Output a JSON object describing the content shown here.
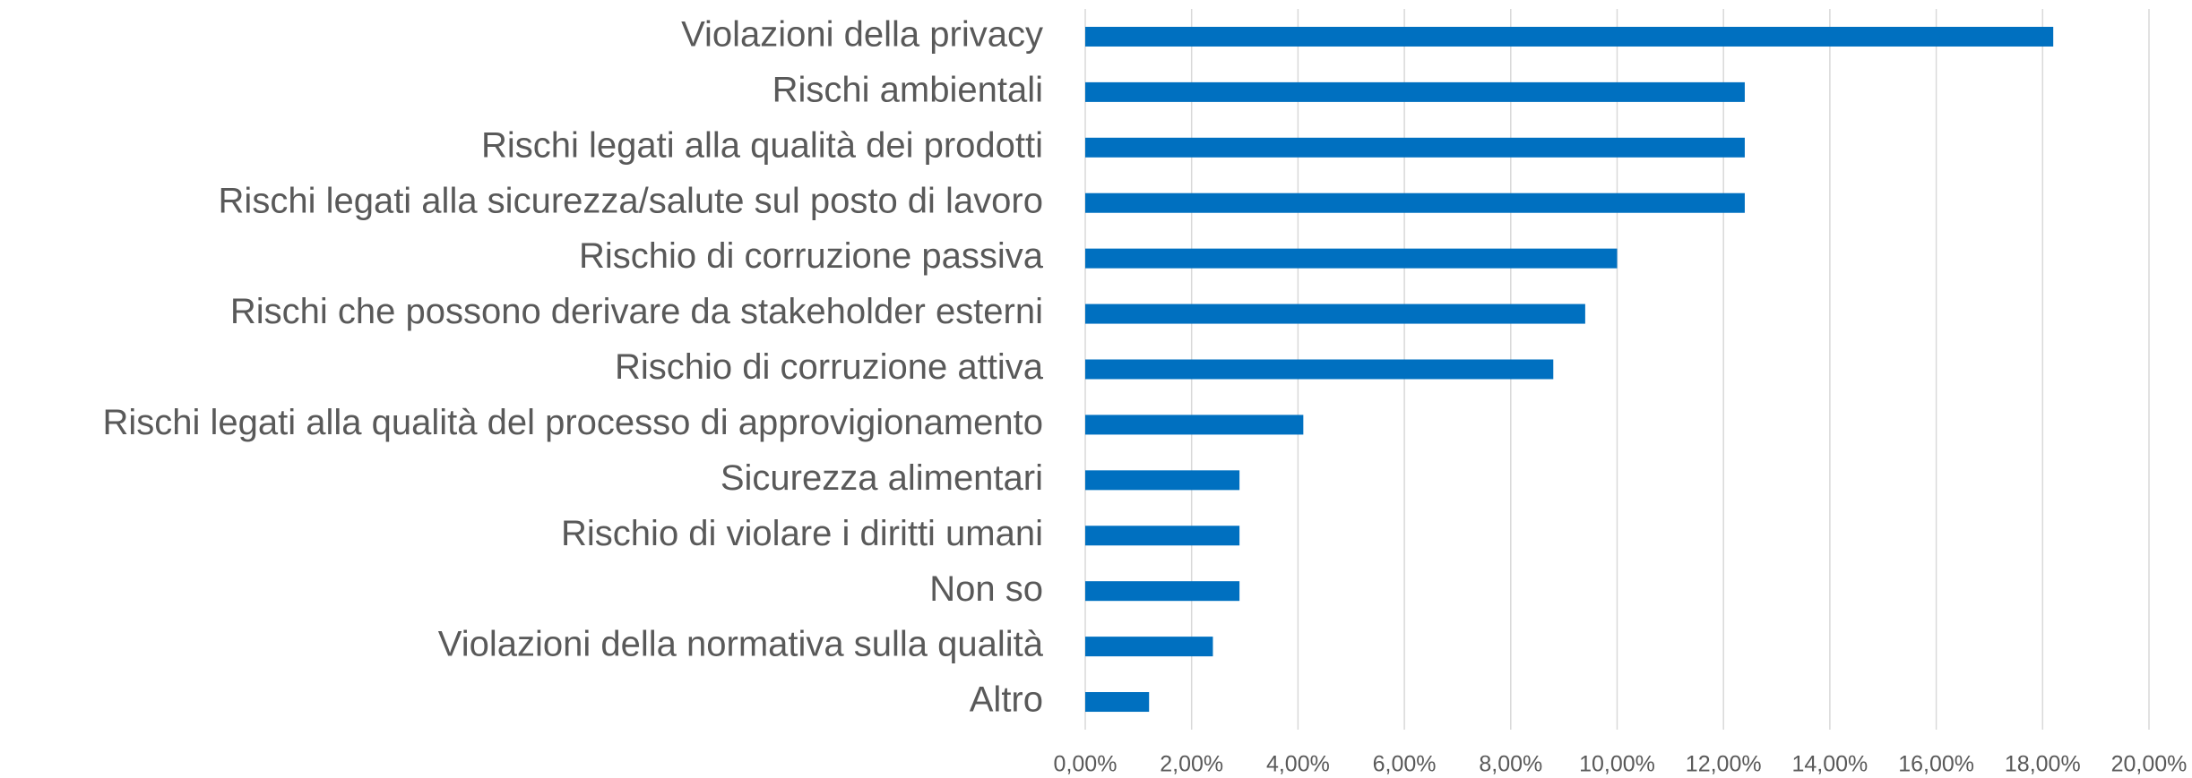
{
  "chart_data": {
    "type": "bar",
    "orientation": "horizontal",
    "categories": [
      "Violazioni della privacy",
      "Rischi ambientali",
      "Rischi legati alla qualità dei prodotti",
      "Rischi legati alla sicurezza/salute sul posto di lavoro",
      "Rischio di corruzione passiva",
      "Rischi che possono derivare da stakeholder esterni",
      "Rischio di corruzione attiva",
      "Rischi legati alla qualità del processo di approvigionamento",
      "Sicurezza alimentari",
      "Rischio di violare i diritti umani",
      "Non so",
      "Violazioni della normativa sulla qualità",
      "Altro"
    ],
    "values": [
      18.2,
      12.4,
      12.4,
      12.4,
      10.0,
      9.4,
      8.8,
      4.1,
      2.9,
      2.9,
      2.9,
      2.4,
      1.2
    ],
    "color": "#0070c0",
    "xlim": [
      0,
      20
    ],
    "xticks": [
      {
        "value": 0,
        "label": "0,00%"
      },
      {
        "value": 2,
        "label": "2,00%"
      },
      {
        "value": 4,
        "label": "4,00%"
      },
      {
        "value": 6,
        "label": "6,00%"
      },
      {
        "value": 8,
        "label": "8,00%"
      },
      {
        "value": 10,
        "label": "10,00%"
      },
      {
        "value": 12,
        "label": "12,00%"
      },
      {
        "value": 14,
        "label": "14,00%"
      },
      {
        "value": 16,
        "label": "16,00%"
      },
      {
        "value": 18,
        "label": "18,00%"
      },
      {
        "value": 20,
        "label": "20,00%"
      }
    ],
    "grid": true
  }
}
